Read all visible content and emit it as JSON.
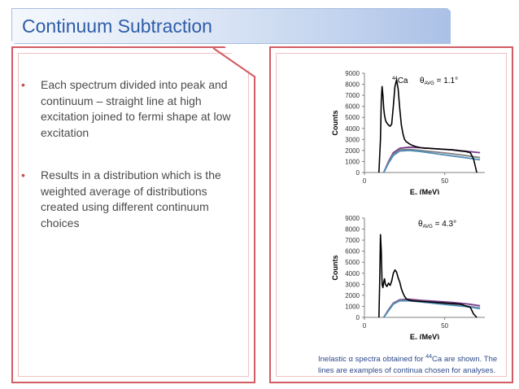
{
  "slide": {
    "title": "Continuum Subtraction",
    "bullets": [
      "Each spectrum divided into peak and continuum – straight line at high excitation joined to fermi shape at low excitation",
      "Results in a distribution which is the weighted average of distributions created using different continuum choices"
    ],
    "bullet_marker": "•",
    "caption": {
      "prefix": "Inelastic α spectra obtained for ",
      "mass": "44",
      "element": "Ca",
      "suffix": " are shown. The lines are examples of continua chosen for analyses."
    },
    "colors": {
      "title_text": "#2e5da8",
      "panel_border": "#d25c63",
      "spectrum": "#000000",
      "continuum_purple": "#7b3f8c",
      "continuum_gray": "#808080",
      "continuum_blue": "#4f8db8"
    }
  },
  "chart_data": [
    {
      "type": "line",
      "label_isotope_mass": "44",
      "label_isotope_element": "Ca",
      "angle_label": {
        "theta": "θ",
        "sub": "AVG",
        "value": " = 1.1°"
      },
      "ylabel": "Counts",
      "xlabel": {
        "main": "E",
        "sub": "x",
        "unit": " (MeV)"
      },
      "ylim": [
        0,
        9000
      ],
      "xlim": [
        0,
        75
      ],
      "yticks": [
        "0",
        "1000",
        "2000",
        "3000",
        "4000",
        "5000",
        "6000",
        "7000",
        "8000",
        "9000"
      ],
      "xticks": [
        {
          "value": 0,
          "label": "0"
        },
        {
          "value": 50,
          "label": "50"
        }
      ],
      "grid": false,
      "series": [
        {
          "role": "spectrum",
          "color": "#000000",
          "x": [
            9,
            10,
            10.5,
            11,
            11.5,
            12,
            12.5,
            13,
            13.5,
            14,
            14.5,
            15,
            16,
            17,
            18,
            19,
            20,
            21,
            22,
            23,
            24,
            25,
            26,
            27,
            28,
            30,
            32,
            35,
            38,
            40,
            45,
            50,
            55,
            60,
            63,
            66,
            68,
            70
          ],
          "y": [
            0,
            3000,
            6500,
            7800,
            7000,
            5800,
            5200,
            4800,
            4600,
            4500,
            4400,
            4300,
            4200,
            4400,
            6000,
            7800,
            8400,
            7600,
            5800,
            4300,
            3500,
            3000,
            2800,
            2700,
            2600,
            2450,
            2350,
            2250,
            2200,
            2200,
            2150,
            2100,
            2050,
            1950,
            1900,
            1800,
            1200,
            0
          ]
        },
        {
          "role": "continuum",
          "color": "#7b3f8c",
          "x": [
            12,
            15,
            18,
            22,
            28,
            35,
            45,
            55,
            65,
            72
          ],
          "y": [
            0,
            1000,
            1800,
            2200,
            2300,
            2250,
            2150,
            2050,
            1900,
            1800
          ]
        },
        {
          "role": "continuum",
          "color": "#808080",
          "x": [
            12,
            15,
            18,
            22,
            28,
            35,
            45,
            55,
            65,
            72
          ],
          "y": [
            0,
            900,
            1650,
            2050,
            2100,
            2000,
            1850,
            1700,
            1500,
            1350
          ]
        },
        {
          "role": "continuum",
          "color": "#4f8db8",
          "x": [
            12,
            15,
            18,
            22,
            28,
            35,
            45,
            55,
            65,
            72
          ],
          "y": [
            0,
            850,
            1550,
            1950,
            2000,
            1900,
            1700,
            1500,
            1300,
            1150
          ]
        }
      ]
    },
    {
      "type": "line",
      "angle_label": {
        "theta": "θ",
        "sub": "AVG",
        "value": " = 4.3°"
      },
      "ylabel": "Counts",
      "xlabel": {
        "main": "E",
        "sub": "x",
        "unit": " (MeV)"
      },
      "ylim": [
        0,
        9000
      ],
      "xlim": [
        0,
        75
      ],
      "yticks": [
        "0",
        "1000",
        "2000",
        "3000",
        "4000",
        "5000",
        "6000",
        "7000",
        "8000",
        "9000"
      ],
      "xticks": [
        {
          "value": 0,
          "label": "0"
        },
        {
          "value": 50,
          "label": "50"
        }
      ],
      "grid": false,
      "series": [
        {
          "role": "spectrum",
          "color": "#000000",
          "x": [
            9,
            9.5,
            10,
            10.5,
            11,
            11.5,
            12,
            12.5,
            13,
            14,
            15,
            16,
            17,
            18,
            19,
            20,
            21,
            22,
            23,
            24,
            25,
            26,
            28,
            30,
            35,
            40,
            45,
            50,
            55,
            60,
            62,
            64,
            66,
            68,
            70
          ],
          "y": [
            0,
            3000,
            7500,
            6000,
            3000,
            2700,
            3200,
            3500,
            3000,
            2800,
            3100,
            2900,
            3300,
            4000,
            4300,
            4100,
            3600,
            3200,
            2600,
            2200,
            1900,
            1700,
            1550,
            1500,
            1450,
            1400,
            1350,
            1300,
            1250,
            1200,
            1100,
            1000,
            900,
            300,
            0
          ]
        },
        {
          "role": "continuum",
          "color": "#7b3f8c",
          "x": [
            12,
            15,
            18,
            22,
            28,
            35,
            45,
            55,
            65,
            72
          ],
          "y": [
            0,
            700,
            1300,
            1600,
            1650,
            1550,
            1450,
            1350,
            1200,
            1050
          ]
        },
        {
          "role": "continuum",
          "color": "#808080",
          "x": [
            12,
            15,
            18,
            22,
            28,
            35,
            45,
            55,
            65,
            72
          ],
          "y": [
            0,
            650,
            1250,
            1550,
            1550,
            1450,
            1300,
            1150,
            1000,
            850
          ]
        },
        {
          "role": "continuum",
          "color": "#4f8db8",
          "x": [
            12,
            15,
            18,
            22,
            28,
            35,
            45,
            55,
            65,
            72
          ],
          "y": [
            0,
            600,
            1200,
            1500,
            1500,
            1400,
            1250,
            1100,
            950,
            800
          ]
        }
      ]
    }
  ]
}
